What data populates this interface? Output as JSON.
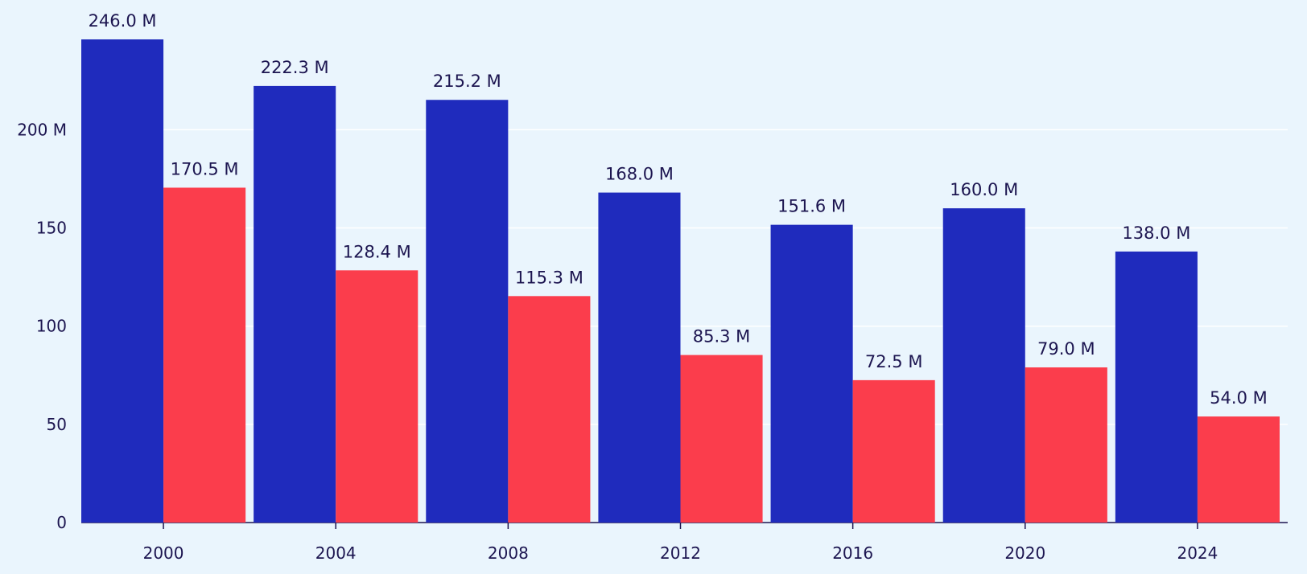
{
  "chart_data": {
    "type": "bar",
    "categories": [
      "2000",
      "2004",
      "2008",
      "2012",
      "2016",
      "2020",
      "2024"
    ],
    "series": [
      {
        "values": [
          246.0,
          222.3,
          215.2,
          168.0,
          151.6,
          160.0,
          138.0
        ],
        "data_labels": [
          "246.0 M",
          "222.3 M",
          "215.2 M",
          "168.0 M",
          "151.6 M",
          "160.0 M",
          "138.0 M"
        ],
        "color": "#1f2bbd"
      },
      {
        "values": [
          170.5,
          128.4,
          115.3,
          85.3,
          72.5,
          79.0,
          54.0
        ],
        "data_labels": [
          "170.5 M",
          "128.4 M",
          "115.3 M",
          "85.3 M",
          "72.5 M",
          "79.0 M",
          "54.0 M"
        ],
        "color": "#fb3d4c"
      }
    ],
    "y_ticks": [
      {
        "value": 0,
        "label": "0"
      },
      {
        "value": 50,
        "label": "50"
      },
      {
        "value": 100,
        "label": "100"
      },
      {
        "value": 150,
        "label": "150"
      },
      {
        "value": 200,
        "label": "200 M"
      }
    ],
    "ylim": [
      0,
      246
    ],
    "grid": true,
    "legend": false,
    "title": "",
    "xlabel": "",
    "ylabel": "",
    "colors": {
      "background": "#eaf5fd",
      "gridline": "#ffffff",
      "text": "#1c1550"
    }
  }
}
